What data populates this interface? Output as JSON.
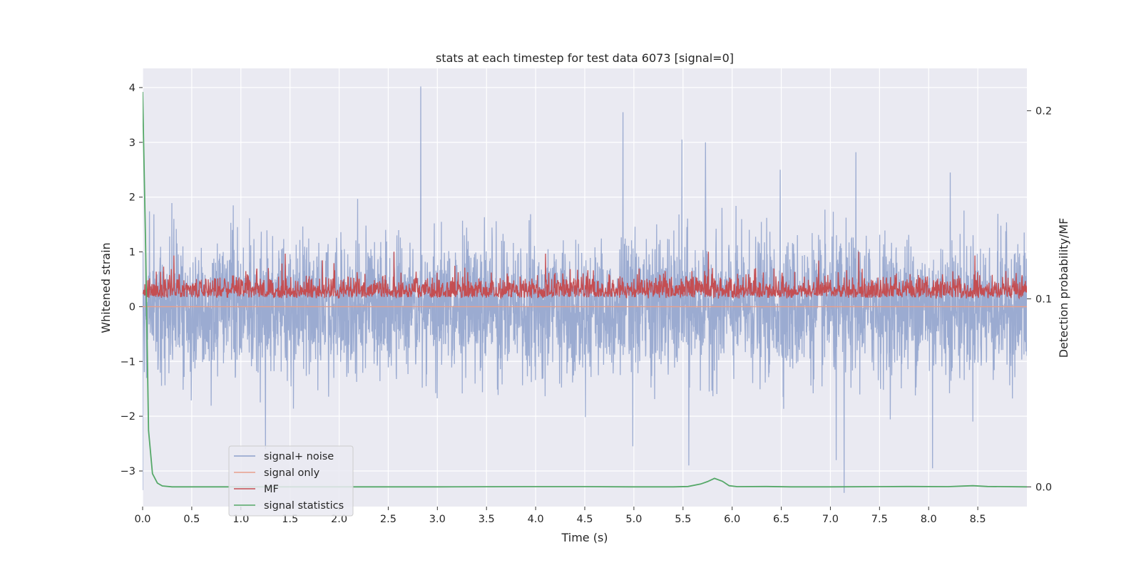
{
  "chart_data": {
    "type": "line",
    "title": "stats at each timestep for test data 6073 [signal=0]",
    "xlabel": "Time (s)",
    "ylabel": "Whitened strain",
    "y2label": "Detection probability/MF",
    "xlim": [
      0.0,
      9.0
    ],
    "ylim": [
      -3.65,
      4.35
    ],
    "y2lim": [
      -0.0105,
      0.2225
    ],
    "x_ticks": [
      0.0,
      0.5,
      1.0,
      1.5,
      2.0,
      2.5,
      3.0,
      3.5,
      4.0,
      4.5,
      5.0,
      5.5,
      6.0,
      6.5,
      7.0,
      7.5,
      8.0,
      8.5
    ],
    "x_tick_labels": [
      "0.0",
      "0.5",
      "1.0",
      "1.5",
      "2.0",
      "2.5",
      "3.0",
      "3.5",
      "4.0",
      "4.5",
      "5.0",
      "5.5",
      "6.0",
      "6.5",
      "7.0",
      "7.5",
      "8.0",
      "8.5"
    ],
    "y_ticks": [
      -3,
      -2,
      -1,
      0,
      1,
      2,
      3,
      4
    ],
    "y_tick_labels": [
      "−3",
      "−2",
      "−1",
      "0",
      "1",
      "2",
      "3",
      "4"
    ],
    "y2_ticks": [
      0.0,
      0.1,
      0.2
    ],
    "y2_tick_labels": [
      "0.0",
      "0.1",
      "0.2"
    ],
    "grid": true,
    "legend_position": "lower-left",
    "series": [
      {
        "name": "signal+ noise",
        "color": "#8da0cb",
        "axis": "left",
        "sampling": "approx. 2048 samples/s, zero-mean whitened noise with std about 0.65",
        "peaks": [
          {
            "x": 2.83,
            "y": 4.02
          },
          {
            "x": 4.89,
            "y": 3.55
          },
          {
            "x": 5.49,
            "y": 3.05
          },
          {
            "x": 5.73,
            "y": 3.0
          },
          {
            "x": 7.26,
            "y": 2.82
          },
          {
            "x": 6.49,
            "y": 2.5
          },
          {
            "x": 8.22,
            "y": 2.45
          }
        ],
        "troughs": [
          {
            "x": 7.14,
            "y": -3.4
          },
          {
            "x": 5.56,
            "y": -2.9
          },
          {
            "x": 8.04,
            "y": -2.95
          },
          {
            "x": 7.06,
            "y": -2.8
          },
          {
            "x": 4.99,
            "y": -2.55
          },
          {
            "x": 1.25,
            "y": -2.6
          }
        ]
      },
      {
        "name": "signal only",
        "color": "#e8a08c",
        "axis": "left",
        "x": [
          0.0,
          9.0
        ],
        "y": [
          0.0,
          0.0
        ]
      },
      {
        "name": "MF",
        "color": "#c44e52",
        "axis": "right",
        "range_note": "rectified matched-filter output, values roughly 0.1 to 0.13",
        "peaks": [
          {
            "x": 0.32,
            "y": 0.123
          },
          {
            "x": 1.45,
            "y": 0.124
          },
          {
            "x": 2.56,
            "y": 0.125
          },
          {
            "x": 4.1,
            "y": 0.124
          },
          {
            "x": 5.76,
            "y": 0.125
          },
          {
            "x": 7.29,
            "y": 0.125
          },
          {
            "x": 8.47,
            "y": 0.123
          }
        ]
      },
      {
        "name": "signal statistics",
        "color": "#55a868",
        "axis": "right",
        "x": [
          0.0,
          0.03,
          0.06,
          0.1,
          0.15,
          0.2,
          0.3,
          0.5,
          1.0,
          2.0,
          3.0,
          3.9,
          4.5,
          5.0,
          5.4,
          5.55,
          5.68,
          5.75,
          5.82,
          5.9,
          5.97,
          6.05,
          6.35,
          6.6,
          7.0,
          7.5,
          7.8,
          8.2,
          8.35,
          8.45,
          8.6,
          9.0
        ],
        "y": [
          0.21,
          0.13,
          0.03,
          0.007,
          0.002,
          0.0005,
          0.0,
          0.0,
          0.0,
          0.0,
          0.0,
          0.0001,
          0.0001,
          0.0,
          0.0,
          0.0002,
          0.0015,
          0.0028,
          0.0045,
          0.003,
          0.0006,
          0.0001,
          0.0002,
          0.0,
          0.0,
          0.0001,
          0.0002,
          0.0001,
          0.0004,
          0.0006,
          0.0002,
          0.0
        ]
      }
    ]
  }
}
